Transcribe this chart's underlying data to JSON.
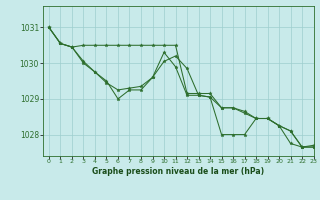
{
  "background_color": "#c8eaea",
  "grid_color": "#9ecece",
  "line_color": "#2d6e2d",
  "marker_color": "#2d6e2d",
  "xlabel": "Graphe pression niveau de la mer (hPa)",
  "xlabel_color": "#1a4d1a",
  "tick_color": "#2d6e2d",
  "xlim": [
    -0.5,
    23
  ],
  "ylim": [
    1027.4,
    1031.6
  ],
  "yticks": [
    1028,
    1029,
    1030,
    1031
  ],
  "xtick_labels": [
    "0",
    "1",
    "2",
    "3",
    "4",
    "5",
    "6",
    "7",
    "8",
    "9",
    "10",
    "11",
    "12",
    "13",
    "14",
    "15",
    "16",
    "17",
    "18",
    "19",
    "20",
    "21",
    "22",
    "23"
  ],
  "series": [
    [
      1031.0,
      1030.55,
      1030.45,
      1030.05,
      1029.75,
      1029.5,
      1029.0,
      1029.25,
      1029.25,
      1029.6,
      1030.05,
      1030.2,
      1029.85,
      1029.1,
      1029.05,
      1028.0,
      1028.0,
      1028.0,
      1028.45,
      1028.45,
      1028.25,
      1027.75,
      1027.65,
      1027.7
    ],
    [
      1031.0,
      1030.55,
      1030.45,
      1030.5,
      1030.5,
      1030.5,
      1030.5,
      1030.5,
      1030.5,
      1030.5,
      1030.5,
      1030.5,
      1029.15,
      1029.15,
      1029.15,
      1028.75,
      1028.75,
      1028.65,
      1028.45,
      1028.45,
      1028.25,
      1028.1,
      1027.65,
      1027.65
    ],
    [
      1031.0,
      1030.55,
      1030.45,
      1030.0,
      1029.75,
      1029.45,
      1029.25,
      1029.3,
      1029.35,
      1029.6,
      1030.3,
      1029.9,
      1029.1,
      1029.1,
      1029.05,
      1028.75,
      1028.75,
      1028.6,
      1028.45,
      1028.45,
      1028.25,
      1028.1,
      1027.65,
      1027.65
    ]
  ]
}
